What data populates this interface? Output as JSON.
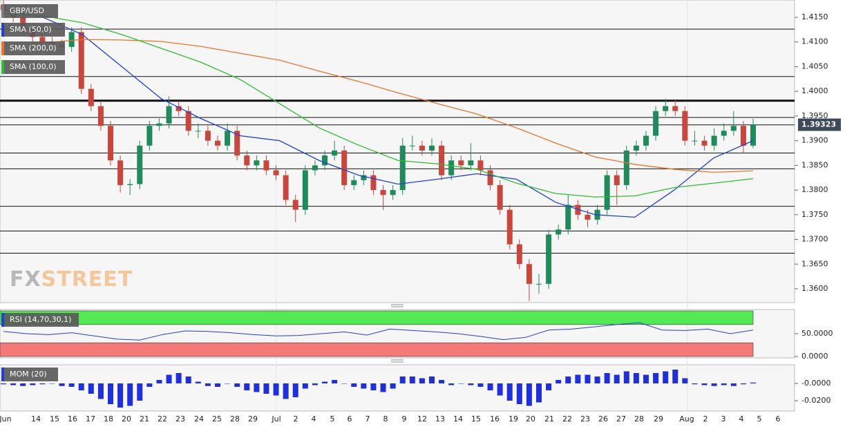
{
  "chart_data": [
    {
      "type": "candlestick",
      "title": "GBP/USD",
      "watermark": [
        "FX",
        "STREET"
      ],
      "ylim": [
        1.3572,
        1.4185
      ],
      "yticks": [
        {
          "value": 1.415,
          "label": "1.4150"
        },
        {
          "value": 1.41,
          "label": "1.4100"
        },
        {
          "value": 1.405,
          "label": "1.4050"
        },
        {
          "value": 1.4,
          "label": "1.4000"
        },
        {
          "value": 1.395,
          "label": "1.3950"
        },
        {
          "value": 1.39,
          "label": "1.3900"
        },
        {
          "value": 1.385,
          "label": "1.3850"
        },
        {
          "value": 1.38,
          "label": "1.3800"
        },
        {
          "value": 1.375,
          "label": "1.3750"
        },
        {
          "value": 1.37,
          "label": "1.3700"
        },
        {
          "value": 1.365,
          "label": "1.3650"
        },
        {
          "value": 1.36,
          "label": "1.3600"
        }
      ],
      "last_price": 1.39323,
      "up_color": "#1f8a5a",
      "down_color": "#c8463c",
      "levels": [
        {
          "value": 1.4126
        },
        {
          "value": 1.403
        },
        {
          "value": 1.3981,
          "bold": true
        },
        {
          "value": 1.3947
        },
        {
          "value": 1.3932
        },
        {
          "value": 1.3875
        },
        {
          "value": 1.3843
        },
        {
          "value": 1.3767
        },
        {
          "value": 1.3717
        },
        {
          "value": 1.3672
        }
      ],
      "candles": [
        [
          1.4175,
          1.4185,
          1.4155,
          1.4165
        ],
        [
          1.4165,
          1.4175,
          1.414,
          1.415
        ],
        [
          1.415,
          1.416,
          1.4115,
          1.4125
        ],
        [
          1.4125,
          1.4135,
          1.41,
          1.411
        ],
        [
          1.411,
          1.412,
          1.409,
          1.41
        ],
        [
          1.41,
          1.411,
          1.4085,
          1.4095
        ],
        [
          1.4095,
          1.4105,
          1.408,
          1.409
        ],
        [
          1.409,
          1.413,
          1.408,
          1.412
        ],
        [
          1.412,
          1.413,
          1.3995,
          1.4005
        ],
        [
          1.4005,
          1.4015,
          1.396,
          1.397
        ],
        [
          1.397,
          1.398,
          1.392,
          1.393
        ],
        [
          1.393,
          1.394,
          1.385,
          1.386
        ],
        [
          1.386,
          1.387,
          1.3795,
          1.381
        ],
        [
          1.381,
          1.3822,
          1.379,
          1.3812
        ],
        [
          1.3812,
          1.39,
          1.3802,
          1.389
        ],
        [
          1.389,
          1.394,
          1.388,
          1.393
        ],
        [
          1.393,
          1.3945,
          1.392,
          1.3935
        ],
        [
          1.3935,
          1.399,
          1.3925,
          1.397
        ],
        [
          1.397,
          1.398,
          1.395,
          1.396
        ],
        [
          1.396,
          1.397,
          1.391,
          1.392
        ],
        [
          1.392,
          1.3935,
          1.3905,
          1.392
        ],
        [
          1.392,
          1.393,
          1.389,
          1.39
        ],
        [
          1.39,
          1.391,
          1.388,
          1.389
        ],
        [
          1.389,
          1.3935,
          1.388,
          1.392
        ],
        [
          1.392,
          1.393,
          1.386,
          1.387
        ],
        [
          1.387,
          1.388,
          1.384,
          1.385
        ],
        [
          1.385,
          1.387,
          1.384,
          1.386
        ],
        [
          1.386,
          1.387,
          1.383,
          1.384
        ],
        [
          1.384,
          1.385,
          1.382,
          1.383
        ],
        [
          1.383,
          1.384,
          1.377,
          1.378
        ],
        [
          1.378,
          1.379,
          1.3735,
          1.376
        ],
        [
          1.376,
          1.385,
          1.375,
          1.384
        ],
        [
          1.384,
          1.386,
          1.383,
          1.385
        ],
        [
          1.385,
          1.388,
          1.384,
          1.387
        ],
        [
          1.387,
          1.39,
          1.386,
          1.388
        ],
        [
          1.388,
          1.389,
          1.38,
          1.381
        ],
        [
          1.381,
          1.383,
          1.38,
          1.382
        ],
        [
          1.382,
          1.384,
          1.381,
          1.383
        ],
        [
          1.383,
          1.384,
          1.379,
          1.38
        ],
        [
          1.38,
          1.381,
          1.376,
          1.379
        ],
        [
          1.379,
          1.381,
          1.378,
          1.38
        ],
        [
          1.38,
          1.3905,
          1.379,
          1.389
        ],
        [
          1.389,
          1.391,
          1.388,
          1.389
        ],
        [
          1.389,
          1.39,
          1.387,
          1.388
        ],
        [
          1.388,
          1.3905,
          1.387,
          1.389
        ],
        [
          1.389,
          1.39,
          1.382,
          1.383
        ],
        [
          1.383,
          1.387,
          1.382,
          1.386
        ],
        [
          1.386,
          1.387,
          1.384,
          1.385
        ],
        [
          1.385,
          1.3895,
          1.384,
          1.386
        ],
        [
          1.386,
          1.387,
          1.383,
          1.384
        ],
        [
          1.384,
          1.385,
          1.38,
          1.381
        ],
        [
          1.381,
          1.382,
          1.375,
          1.376
        ],
        [
          1.376,
          1.377,
          1.368,
          1.369
        ],
        [
          1.369,
          1.37,
          1.364,
          1.365
        ],
        [
          1.365,
          1.366,
          1.3575,
          1.361
        ],
        [
          1.361,
          1.363,
          1.359,
          1.361
        ],
        [
          1.361,
          1.372,
          1.36,
          1.371
        ],
        [
          1.371,
          1.373,
          1.37,
          1.372
        ],
        [
          1.372,
          1.379,
          1.371,
          1.377
        ],
        [
          1.377,
          1.378,
          1.374,
          1.375
        ],
        [
          1.375,
          1.376,
          1.3725,
          1.374
        ],
        [
          1.374,
          1.377,
          1.373,
          1.376
        ],
        [
          1.376,
          1.384,
          1.375,
          1.383
        ],
        [
          1.383,
          1.384,
          1.377,
          1.381
        ],
        [
          1.381,
          1.389,
          1.38,
          1.388
        ],
        [
          1.388,
          1.39,
          1.387,
          1.389
        ],
        [
          1.389,
          1.392,
          1.388,
          1.391
        ],
        [
          1.391,
          1.397,
          1.39,
          1.396
        ],
        [
          1.396,
          1.3985,
          1.395,
          1.397
        ],
        [
          1.397,
          1.3982,
          1.395,
          1.396
        ],
        [
          1.396,
          1.397,
          1.389,
          1.39
        ],
        [
          1.39,
          1.392,
          1.389,
          1.39
        ],
        [
          1.39,
          1.391,
          1.388,
          1.389
        ],
        [
          1.389,
          1.3925,
          1.388,
          1.391
        ],
        [
          1.391,
          1.3935,
          1.39,
          1.392
        ],
        [
          1.392,
          1.396,
          1.391,
          1.393
        ],
        [
          1.393,
          1.394,
          1.3875,
          1.389
        ],
        [
          1.389,
          1.3945,
          1.3885,
          1.3932
        ]
      ],
      "series": [
        {
          "name": "SMA (50,0)",
          "color": "#1f3fd6",
          "values": [
            1.4165,
            1.415,
            1.4115,
            1.405,
            1.3985,
            1.3945,
            1.391,
            1.39,
            1.386,
            1.383,
            1.3812,
            1.3822,
            1.3833,
            1.3822,
            1.3775,
            1.375,
            1.3745,
            1.38,
            1.3865,
            1.39
          ]
        },
        {
          "name": "SMA (200,0)",
          "color": "#e8742a",
          "values": [
            1.4093,
            1.4098,
            1.4105,
            1.4104,
            1.4101,
            1.4091,
            1.4077,
            1.4063,
            1.4041,
            1.402,
            1.3997,
            1.3975,
            1.3954,
            1.3926,
            1.3895,
            1.3867,
            1.3852,
            1.3842,
            1.3836,
            1.3839
          ]
        },
        {
          "name": "SMA (100,0)",
          "color": "#2ebd2e",
          "values": [
            1.4157,
            1.4153,
            1.4139,
            1.4115,
            1.4087,
            1.4059,
            1.4024,
            1.3975,
            1.3926,
            1.3891,
            1.386,
            1.3853,
            1.3842,
            1.3814,
            1.3793,
            1.3786,
            1.3788,
            1.3805,
            1.3814,
            1.3823
          ]
        }
      ]
    },
    {
      "type": "line",
      "name": "RSI (14,70,30,1)",
      "color": "#1f3fd6",
      "ylim": [
        0,
        100
      ],
      "yticks": [
        {
          "value": 50,
          "label": "50.0000"
        },
        {
          "value": 0,
          "label": "0.0000"
        }
      ],
      "upper": 70,
      "lower": 30,
      "upper_color": "#55e855",
      "lower_color": "#f47a7a",
      "values": [
        55,
        50,
        48,
        52,
        45,
        38,
        36,
        48,
        56,
        55,
        52,
        48,
        45,
        46,
        50,
        54,
        47,
        60,
        57,
        54,
        50,
        44,
        37,
        42,
        58,
        60,
        65,
        70,
        74,
        58,
        57,
        60,
        50,
        58
      ]
    },
    {
      "type": "bar",
      "name": "MOM (20)",
      "color": "#1f2fe0",
      "ylim": [
        -0.032,
        0.0216
      ],
      "yticks": [
        {
          "value": 0,
          "label": "-0.0000"
        },
        {
          "value": -0.02,
          "label": "-0.0200"
        }
      ],
      "values": [
        -0.001,
        -0.002,
        -0.003,
        -0.002,
        -0.001,
        0.0,
        -0.003,
        -0.004,
        -0.008,
        -0.012,
        -0.018,
        -0.024,
        -0.028,
        -0.026,
        -0.02,
        -0.004,
        0.004,
        0.01,
        0.012,
        0.008,
        0.002,
        -0.003,
        -0.004,
        0.0,
        -0.004,
        -0.008,
        -0.01,
        -0.012,
        -0.014,
        -0.018,
        -0.016,
        -0.006,
        -0.002,
        0.002,
        0.004,
        0.0,
        -0.004,
        -0.006,
        -0.008,
        -0.01,
        -0.006,
        0.008,
        0.008,
        0.006,
        0.008,
        0.004,
        -0.002,
        0.0,
        -0.002,
        -0.004,
        -0.008,
        -0.014,
        -0.02,
        -0.024,
        -0.026,
        -0.022,
        -0.008,
        0.004,
        0.008,
        0.01,
        0.01,
        0.008,
        0.012,
        0.01,
        0.014,
        0.012,
        0.01,
        0.012,
        0.014,
        0.016,
        0.006,
        -0.001,
        -0.002,
        -0.003,
        -0.002,
        -0.003,
        -0.001,
        0.001
      ],
      "x_axis_labels": [
        "Jun",
        "14",
        "15",
        "16",
        "17",
        "18",
        "20",
        "21",
        "22",
        "23",
        "24",
        "25",
        "28",
        "29",
        "Jul",
        "2",
        "4",
        "5",
        "6",
        "7",
        "8",
        "9",
        "12",
        "13",
        "14",
        "15",
        "16",
        "19",
        "20",
        "21",
        "22",
        "23",
        "26",
        "27",
        "28",
        "29",
        "Aug",
        "2",
        "3",
        "4",
        "5",
        "6"
      ]
    }
  ]
}
